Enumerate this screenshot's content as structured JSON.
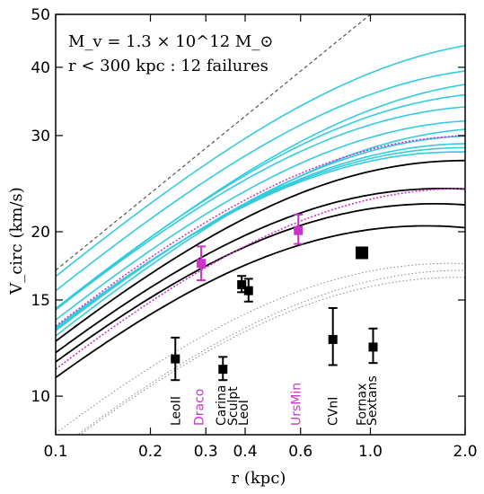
{
  "chart_data": {
    "type": "scatter",
    "annotations": {
      "line1": "M_v = 1.3 × 10^12 M_⊙",
      "line2": "r < 300 kpc : 12 failures"
    },
    "xlabel": "r (kpc)",
    "ylabel": "V_circ (km/s)",
    "xscale": "log",
    "yscale": "log",
    "xlim": [
      0.1,
      2.0
    ],
    "ylim": [
      8.5,
      50
    ],
    "xticks": [
      {
        "value": 0.1,
        "label": "0.1"
      },
      {
        "value": 0.2,
        "label": "0.2"
      },
      {
        "value": 0.3,
        "label": "0.3"
      },
      {
        "value": 0.4,
        "label": "0.4"
      },
      {
        "value": 0.6,
        "label": "0.6"
      },
      {
        "value": 1.0,
        "label": "1.0"
      },
      {
        "value": 2.0,
        "label": "2.0"
      }
    ],
    "yticks": [
      {
        "value": 10,
        "label": "10"
      },
      {
        "value": 15,
        "label": "15"
      },
      {
        "value": 20,
        "label": "20"
      },
      {
        "value": 30,
        "label": "30"
      },
      {
        "value": 40,
        "label": "40"
      },
      {
        "value": 50,
        "label": "50"
      }
    ],
    "galaxies": [
      {
        "name": "LeoII",
        "r": 0.24,
        "v": 11.7,
        "err_low": 1.0,
        "err_high": 1.1,
        "label_r": 0.24,
        "color": "#000000"
      },
      {
        "name": "Draco",
        "r": 0.29,
        "v": 17.5,
        "err_low": 1.2,
        "err_high": 1.3,
        "label_r": 0.285,
        "color": "#cc33cc"
      },
      {
        "name": "Carina",
        "r": 0.34,
        "v": 11.2,
        "err_low": 0.5,
        "err_high": 0.6,
        "label_r": 0.335,
        "color": "#000000"
      },
      {
        "name": "Sculpt",
        "r": 0.39,
        "v": 16.0,
        "err_low": 0.5,
        "err_high": 0.6,
        "label_r": 0.365,
        "color": "#000000"
      },
      {
        "name": "LeoI",
        "r": 0.41,
        "v": 15.6,
        "err_low": 0.7,
        "err_high": 0.8,
        "label_r": 0.395,
        "color": "#000000"
      },
      {
        "name": "UrsMin",
        "r": 0.59,
        "v": 20.1,
        "err_low": 1.1,
        "err_high": 1.4,
        "label_r": 0.58,
        "color": "#cc33cc"
      },
      {
        "name": "CVnI",
        "r": 0.76,
        "v": 12.7,
        "err_low": 1.3,
        "err_high": 1.8,
        "label_r": 0.76,
        "color": "#000000"
      },
      {
        "name": "Fornax",
        "r": 0.94,
        "v": 18.3,
        "err_low": 0.4,
        "err_high": 0.4,
        "label_r": 0.935,
        "color": "#000000"
      },
      {
        "name": "Sextans",
        "r": 1.02,
        "v": 12.3,
        "err_low": 0.8,
        "err_high": 1.0,
        "label_r": 1.01,
        "color": "#000000"
      }
    ],
    "curves": {
      "cyan_color": "#33ccdd",
      "black_color": "#000000",
      "magenta_color": "#cc33cc",
      "gray_color": "#888888",
      "cyan": [
        {
          "vmax": 45,
          "rmax": 3.4
        },
        {
          "vmax": 40,
          "rmax": 3.0
        },
        {
          "vmax": 38,
          "rmax": 3.2
        },
        {
          "vmax": 36,
          "rmax": 2.8
        },
        {
          "vmax": 34,
          "rmax": 2.5
        },
        {
          "vmax": 32,
          "rmax": 2.4
        },
        {
          "vmax": 31,
          "rmax": 2.6
        },
        {
          "vmax": 30,
          "rmax": 2.3
        },
        {
          "vmax": 29,
          "rmax": 2.1
        },
        {
          "vmax": 28.5,
          "rmax": 2.0
        },
        {
          "vmax": 28,
          "rmax": 1.9
        }
      ],
      "black": [
        {
          "vmax": 27,
          "rmax": 2.0
        },
        {
          "vmax": 24,
          "rmax": 1.7
        },
        {
          "vmax": 22.5,
          "rmax": 1.6
        },
        {
          "vmax": 20.5,
          "rmax": 1.5
        }
      ],
      "magenta_dotted": [
        {
          "vmax": 30,
          "rmax": 2.2
        },
        {
          "vmax": 24,
          "rmax": 2.0
        }
      ],
      "gray_dotted": [
        {
          "vmax": 17.5,
          "rmax": 1.8
        },
        {
          "vmax": 17.0,
          "rmax": 2.0
        },
        {
          "vmax": 16.5,
          "rmax": 1.9
        }
      ],
      "dashed_line": {
        "points": [
          [
            0.1,
            17
          ],
          [
            1.0,
            50
          ]
        ]
      }
    }
  }
}
